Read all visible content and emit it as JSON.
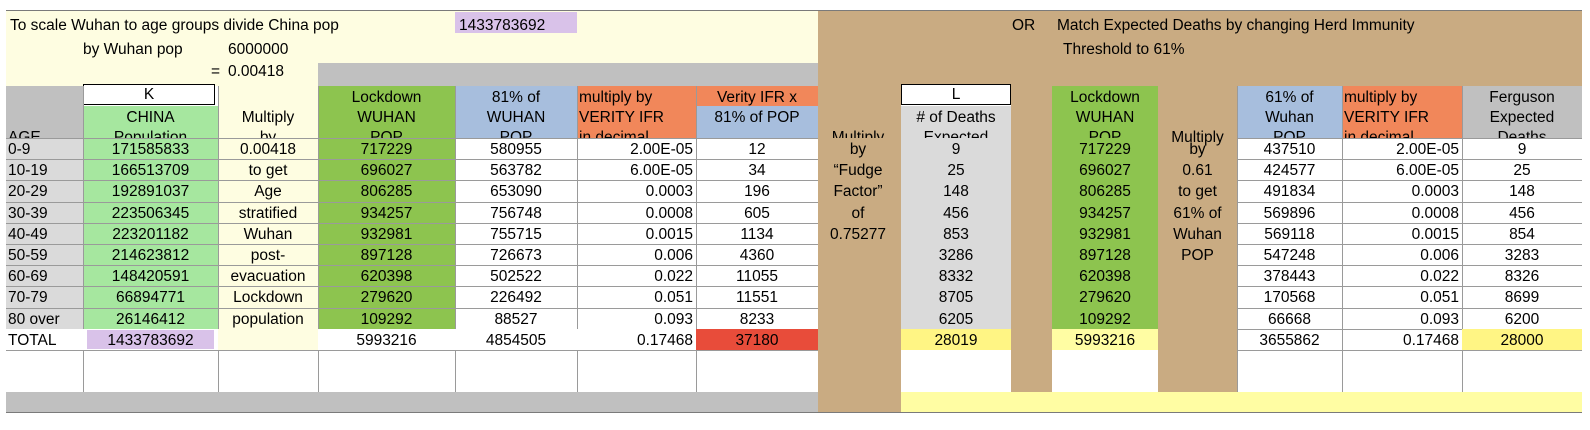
{
  "colors": {
    "cream": "#fefde1",
    "tan": "#c9ab82",
    "gray": "#c0c0c0",
    "light_gray": "#dadada",
    "green": "#8dc44f",
    "light_green": "#a6e79f",
    "blue": "#a7bedd",
    "orange": "#f1875a",
    "red": "#e84c3a",
    "yellow": "#fff584",
    "light_yellow": "#fffda3",
    "lavender": "#d9c2e9",
    "white": "#ffffff"
  },
  "header": {
    "line1_text": "To scale Wuhan to age groups divide China pop",
    "china_pop": "1433783692",
    "line2_label": "by Wuhan pop",
    "wuhan_pop": "6000000",
    "equals": "=",
    "ratio": "0.00418",
    "right_or": "OR",
    "right_line1": "Match Expected Deaths by changing Herd Immunity",
    "right_line2": "Threshold to 61%"
  },
  "markers": {
    "k": "K",
    "l": "L"
  },
  "headers": {
    "age": "AGE",
    "china": [
      "CHINA",
      "Population"
    ],
    "multiply": [
      "Multiply",
      "by"
    ],
    "lockdown": [
      "Lockdown",
      "WUHAN",
      "POP"
    ],
    "p81": [
      "81% of",
      "WUHAN",
      "POP"
    ],
    "ifr": [
      "multiply by",
      "VERITY IFR",
      "in decimal"
    ],
    "verity_x": [
      "Verity IFR x",
      "81% of POP"
    ],
    "fudge_mult": "Multiply",
    "deaths": [
      "# of Deaths",
      "Expected"
    ],
    "lockdown2": [
      "Lockdown",
      "WUHAN",
      "POP"
    ],
    "multiply2": "Multiply",
    "p61": [
      "61% of",
      "Wuhan",
      "POP"
    ],
    "ifr2": [
      "multiply by",
      "VERITY IFR",
      "in decimal"
    ],
    "ferguson": [
      "Ferguson",
      "Expected",
      "Deaths"
    ]
  },
  "col_mult_text": [
    "0.00418",
    "to get",
    "Age",
    "stratified",
    "Wuhan",
    "post-",
    "evacuation",
    "Lockdown",
    "population"
  ],
  "col_fudge_text": [
    "by",
    "“Fudge",
    "Factor”",
    "of",
    "0.75277"
  ],
  "col_mult2_text": [
    "by",
    "0.61",
    "to get",
    "61% of",
    "Wuhan",
    "POP"
  ],
  "rows": [
    {
      "age": "0-9",
      "china": "171585833",
      "lockdown": "717229",
      "p81": "580955",
      "ifr": "2.00E-05",
      "verity": "12",
      "deaths": "9",
      "lockdown2": "717229",
      "p61": "437510",
      "ifr2": "2.00E-05",
      "ferguson": "9"
    },
    {
      "age": "10-19",
      "china": "166513709",
      "lockdown": "696027",
      "p81": "563782",
      "ifr": "6.00E-05",
      "verity": "34",
      "deaths": "25",
      "lockdown2": "696027",
      "p61": "424577",
      "ifr2": "6.00E-05",
      "ferguson": "25"
    },
    {
      "age": "20-29",
      "china": "192891037",
      "lockdown": "806285",
      "p81": "653090",
      "ifr": "0.0003",
      "verity": "196",
      "deaths": "148",
      "lockdown2": "806285",
      "p61": "491834",
      "ifr2": "0.0003",
      "ferguson": "148"
    },
    {
      "age": "30-39",
      "china": "223506345",
      "lockdown": "934257",
      "p81": "756748",
      "ifr": "0.0008",
      "verity": "605",
      "deaths": "456",
      "lockdown2": "934257",
      "p61": "569896",
      "ifr2": "0.0008",
      "ferguson": "456"
    },
    {
      "age": "40-49",
      "china": "223201182",
      "lockdown": "932981",
      "p81": "755715",
      "ifr": "0.0015",
      "verity": "1134",
      "deaths": "853",
      "lockdown2": "932981",
      "p61": "569118",
      "ifr2": "0.0015",
      "ferguson": "854"
    },
    {
      "age": "50-59",
      "china": "214623812",
      "lockdown": "897128",
      "p81": "726673",
      "ifr": "0.006",
      "verity": "4360",
      "deaths": "3286",
      "lockdown2": "897128",
      "p61": "547248",
      "ifr2": "0.006",
      "ferguson": "3283"
    },
    {
      "age": "60-69",
      "china": "148420591",
      "lockdown": "620398",
      "p81": "502522",
      "ifr": "0.022",
      "verity": "11055",
      "deaths": "8332",
      "lockdown2": "620398",
      "p61": "378443",
      "ifr2": "0.022",
      "ferguson": "8326"
    },
    {
      "age": "70-79",
      "china": "66894771",
      "lockdown": "279620",
      "p81": "226492",
      "ifr": "0.051",
      "verity": "11551",
      "deaths": "8705",
      "lockdown2": "279620",
      "p61": "170568",
      "ifr2": "0.051",
      "ferguson": "8699"
    },
    {
      "age": "80 over",
      "china": "26146412",
      "lockdown": "109292",
      "p81": "88527",
      "ifr": "0.093",
      "verity": "8233",
      "deaths": "6205",
      "lockdown2": "109292",
      "p61": "66668",
      "ifr2": "0.093",
      "ferguson": "6200"
    }
  ],
  "total": {
    "label": "TOTAL",
    "china": "1433783692",
    "lockdown": "5993216",
    "p81": "4854505",
    "ifr": "0.17468",
    "verity": "37180",
    "deaths": "28019",
    "lockdown2": "5993216",
    "p61": "3655862",
    "ifr2": "0.17468",
    "ferguson": "28000"
  }
}
